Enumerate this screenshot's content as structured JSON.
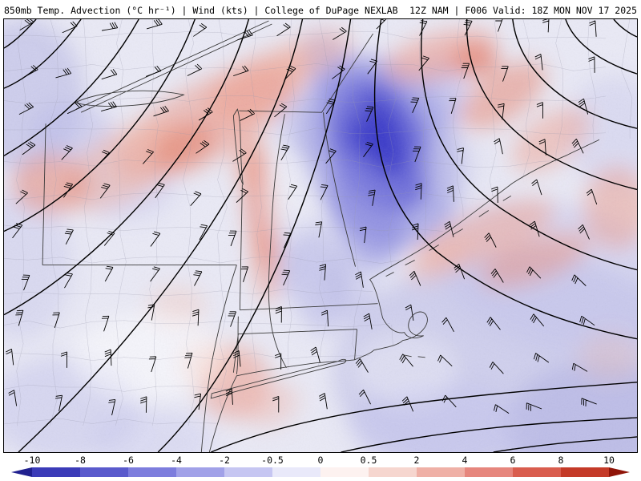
{
  "header": {
    "left": "850mb Temp. Advection (°C hr⁻¹) | Wind (kts) | College of DuPage NEXLAB",
    "right": "12Z NAM | F006 Valid: 18Z MON NOV 17 2025"
  },
  "colorbar": {
    "ticks": [
      "-10",
      "-8",
      "-6",
      "-4",
      "-2",
      "-0.5",
      "0",
      "0.5",
      "2",
      "4",
      "6",
      "8",
      "10"
    ],
    "segment_colors": [
      "#3b3bb8",
      "#5a5acc",
      "#7d7ddd",
      "#a1a1e8",
      "#c6c6f2",
      "#e9e9fa",
      "#fdf2f0",
      "#f6d6cf",
      "#efb0a6",
      "#e6867d",
      "#d95d4e",
      "#c43a28"
    ],
    "left_arrow_color": "#20208f",
    "right_arrow_color": "#8f1408"
  },
  "chart_data": {
    "type": "heatmap",
    "title": "850mb Temp. Advection (°C hr⁻¹) | Wind (kts)",
    "source": "College of DuPage NEXLAB",
    "model": "12Z NAM",
    "forecast_hour": "F006",
    "valid": "18Z MON NOV 17 2025",
    "units": "°C hr⁻¹",
    "colorbar_ticks": [
      -10,
      -8,
      -6,
      -4,
      -2,
      -0.5,
      0,
      0.5,
      2,
      4,
      6,
      8,
      10
    ],
    "legend_position": "bottom"
  }
}
